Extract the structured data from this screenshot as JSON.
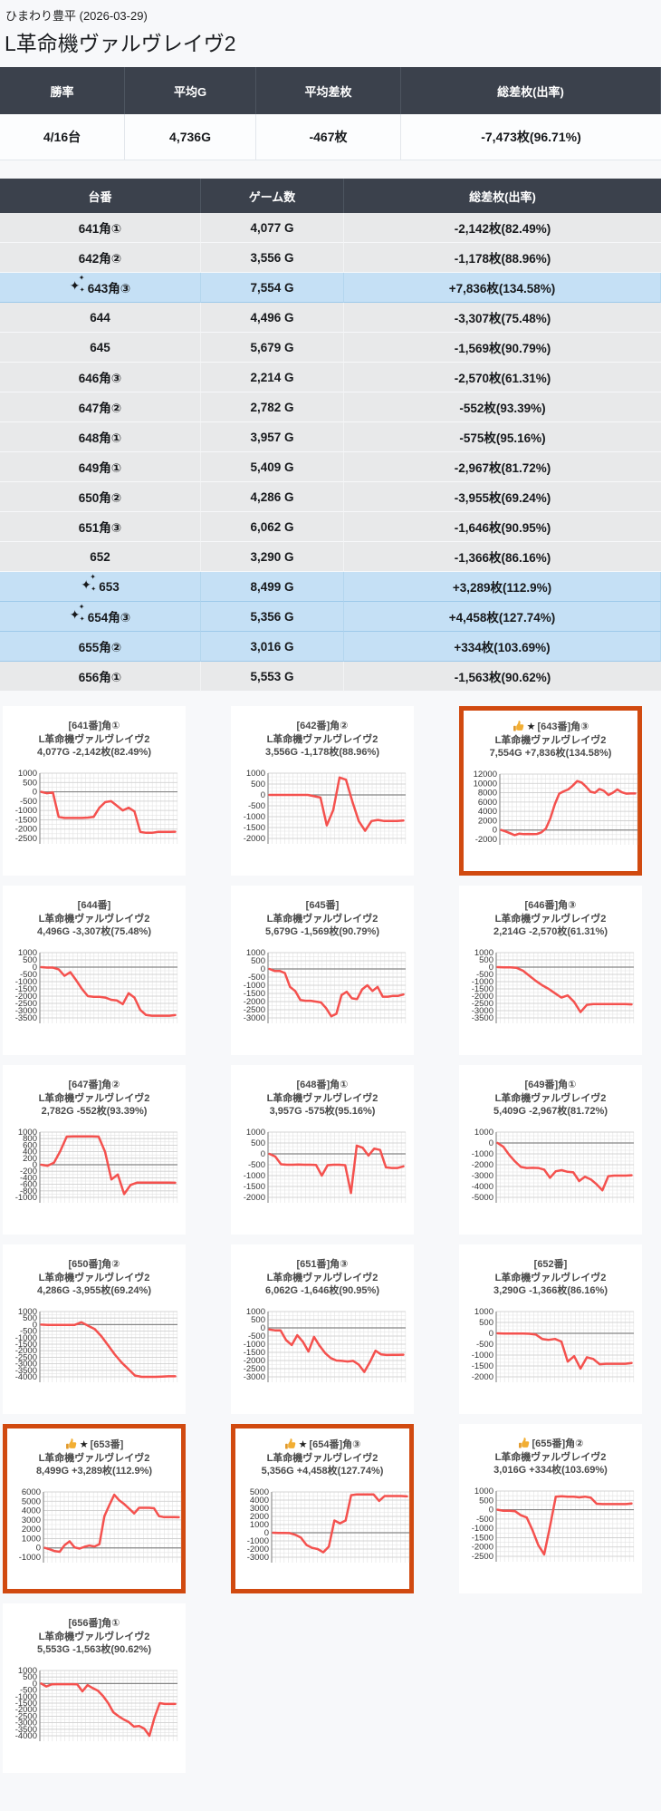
{
  "page": {
    "venue_line": "ひまわり豊平 (2026-03-29)",
    "machine_title": "L革命機ヴァルヴレイヴ2"
  },
  "colors": {
    "header_dark": "#3b414c",
    "row_gray": "#e8e9ea",
    "row_highlight": "#c5e0f5",
    "featured_border": "#d14a10",
    "line_red": "#f4514e",
    "thumb_gold": "#f2ae33"
  },
  "icons": {
    "sparkle": "✦",
    "star": "★",
    "thumb": "thumbs-up"
  },
  "summary": {
    "headers": [
      "勝率",
      "平均G",
      "平均差枚",
      "総差枚(出率)"
    ],
    "values": [
      "4/16台",
      "4,736G",
      "-467枚",
      "-7,473枚(96.71%)"
    ]
  },
  "table": {
    "headers": [
      "台番",
      "ゲーム数",
      "総差枚(出率)"
    ],
    "rows": [
      {
        "dai": "641角①",
        "games": "4,077 G",
        "diff": "-2,142枚(82.49%)",
        "highlight": false,
        "sparkle": false
      },
      {
        "dai": "642角②",
        "games": "3,556 G",
        "diff": "-1,178枚(88.96%)",
        "highlight": false,
        "sparkle": false
      },
      {
        "dai": "643角③",
        "games": "7,554 G",
        "diff": "+7,836枚(134.58%)",
        "highlight": true,
        "sparkle": true
      },
      {
        "dai": "644",
        "games": "4,496 G",
        "diff": "-3,307枚(75.48%)",
        "highlight": false,
        "sparkle": false
      },
      {
        "dai": "645",
        "games": "5,679 G",
        "diff": "-1,569枚(90.79%)",
        "highlight": false,
        "sparkle": false
      },
      {
        "dai": "646角③",
        "games": "2,214 G",
        "diff": "-2,570枚(61.31%)",
        "highlight": false,
        "sparkle": false
      },
      {
        "dai": "647角②",
        "games": "2,782 G",
        "diff": "-552枚(93.39%)",
        "highlight": false,
        "sparkle": false
      },
      {
        "dai": "648角①",
        "games": "3,957 G",
        "diff": "-575枚(95.16%)",
        "highlight": false,
        "sparkle": false
      },
      {
        "dai": "649角①",
        "games": "5,409 G",
        "diff": "-2,967枚(81.72%)",
        "highlight": false,
        "sparkle": false
      },
      {
        "dai": "650角②",
        "games": "4,286 G",
        "diff": "-3,955枚(69.24%)",
        "highlight": false,
        "sparkle": false
      },
      {
        "dai": "651角③",
        "games": "6,062 G",
        "diff": "-1,646枚(90.95%)",
        "highlight": false,
        "sparkle": false
      },
      {
        "dai": "652",
        "games": "3,290 G",
        "diff": "-1,366枚(86.16%)",
        "highlight": false,
        "sparkle": false
      },
      {
        "dai": "653",
        "games": "8,499 G",
        "diff": "+3,289枚(112.9%)",
        "highlight": true,
        "sparkle": true
      },
      {
        "dai": "654角③",
        "games": "5,356 G",
        "diff": "+4,458枚(127.74%)",
        "highlight": true,
        "sparkle": true
      },
      {
        "dai": "655角②",
        "games": "3,016 G",
        "diff": "+334枚(103.69%)",
        "highlight": true,
        "sparkle": false
      },
      {
        "dai": "656角①",
        "games": "5,553 G",
        "diff": "-1,563枚(90.62%)",
        "highlight": false,
        "sparkle": false
      }
    ]
  },
  "chart_data": {
    "type": "line",
    "xlabel": "",
    "ylabel": "差枚",
    "grid": true,
    "charts": [
      {
        "title1": "[641番]角①",
        "title2": "L革命機ヴァルヴレイヴ2",
        "title3": "4,077G -2,142枚(82.49%)",
        "featured": false,
        "badge": null,
        "yticks": [
          1000,
          500,
          0,
          -500,
          -1000,
          -1500,
          -2000,
          -2500
        ],
        "series": [
          0,
          -80,
          -30,
          -1350,
          -1400,
          -1400,
          -1400,
          -1400,
          -1380,
          -1350,
          -850,
          -550,
          -500,
          -750,
          -1000,
          -850,
          -1050,
          -2150,
          -2200,
          -2200,
          -2150,
          -2150,
          -2150,
          -2142
        ]
      },
      {
        "title1": "[642番]角②",
        "title2": "L革命機ヴァルヴレイヴ2",
        "title3": "3,556G -1,178枚(88.96%)",
        "featured": false,
        "badge": null,
        "yticks": [
          1000,
          500,
          0,
          -500,
          -1000,
          -1500,
          -2000
        ],
        "series": [
          0,
          0,
          0,
          0,
          0,
          0,
          0,
          -60,
          -120,
          -1400,
          -700,
          800,
          700,
          -300,
          -1200,
          -1650,
          -1200,
          -1150,
          -1200,
          -1200,
          -1200,
          -1178
        ]
      },
      {
        "title1": "[643番]角③",
        "title2": "L革命機ヴァルヴレイヴ2",
        "title3": "7,554G +7,836枚(134.58%)",
        "featured": true,
        "badge": "thumb_star",
        "yticks": [
          12000,
          10000,
          8000,
          6000,
          4000,
          2000,
          0,
          -2000
        ],
        "series": [
          0,
          -300,
          -700,
          -1100,
          -800,
          -900,
          -850,
          -900,
          -850,
          -500,
          300,
          2500,
          5500,
          7800,
          8300,
          8700,
          9500,
          10500,
          10200,
          9300,
          8200,
          8000,
          8800,
          8400,
          7500,
          8000,
          8700,
          8100,
          7800,
          7836,
          7836
        ]
      },
      {
        "title1": "[644番]",
        "title2": "L革命機ヴァルヴレイヴ2",
        "title3": "4,496G -3,307枚(75.48%)",
        "featured": false,
        "badge": null,
        "yticks": [
          1000,
          500,
          0,
          -500,
          -1000,
          -1500,
          -2000,
          -2500,
          -3000,
          -3500
        ],
        "series": [
          0,
          -30,
          -30,
          -150,
          -600,
          -350,
          -900,
          -1500,
          -2000,
          -2050,
          -2050,
          -2100,
          -2250,
          -2300,
          -2550,
          -1800,
          -2100,
          -2950,
          -3300,
          -3350,
          -3350,
          -3350,
          -3350,
          -3307
        ]
      },
      {
        "title1": "[645番]",
        "title2": "L革命機ヴァルヴレイヴ2",
        "title3": "5,679G -1,569枚(90.79%)",
        "featured": false,
        "badge": null,
        "yticks": [
          1000,
          500,
          0,
          -500,
          -1000,
          -1500,
          -2000,
          -2500,
          -3000
        ],
        "series": [
          0,
          -120,
          -120,
          -250,
          -1100,
          -1350,
          -1900,
          -1950,
          -1950,
          -2000,
          -2050,
          -2400,
          -2900,
          -2750,
          -1600,
          -1400,
          -1800,
          -1850,
          -1250,
          -1000,
          -1350,
          -1100,
          -1700,
          -1700,
          -1650,
          -1650,
          -1569
        ]
      },
      {
        "title1": "[646番]角③",
        "title2": "L革命機ヴァルヴレイヴ2",
        "title3": "2,214G -2,570枚(61.31%)",
        "featured": false,
        "badge": null,
        "yticks": [
          1000,
          500,
          0,
          -500,
          -1000,
          -1500,
          -2000,
          -2500,
          -3000,
          -3500
        ],
        "series": [
          0,
          -20,
          -20,
          -50,
          -250,
          -600,
          -950,
          -1250,
          -1500,
          -1800,
          -2100,
          -1950,
          -2400,
          -3100,
          -2600,
          -2550,
          -2550,
          -2550,
          -2550,
          -2550,
          -2550,
          -2570
        ]
      },
      {
        "title1": "[647番]角②",
        "title2": "L革命機ヴァルヴレイヴ2",
        "title3": "2,782G -552枚(93.39%)",
        "featured": false,
        "badge": null,
        "yticks": [
          1000,
          800,
          600,
          400,
          200,
          0,
          -200,
          -400,
          -600,
          -800,
          -1000
        ],
        "series": [
          0,
          -30,
          60,
          420,
          860,
          870,
          870,
          870,
          870,
          860,
          400,
          -450,
          -300,
          -900,
          -620,
          -550,
          -550,
          -550,
          -550,
          -550,
          -550,
          -552
        ]
      },
      {
        "title1": "[648番]角①",
        "title2": "L革命機ヴァルヴレイヴ2",
        "title3": "3,957G -575枚(95.16%)",
        "featured": false,
        "badge": null,
        "yticks": [
          1000,
          500,
          0,
          -500,
          -1000,
          -1500,
          -2000
        ],
        "series": [
          0,
          -120,
          -480,
          -500,
          -500,
          -490,
          -500,
          -500,
          -510,
          -1000,
          -520,
          -500,
          -500,
          -520,
          -1800,
          380,
          280,
          -80,
          240,
          180,
          -620,
          -650,
          -650,
          -575
        ]
      },
      {
        "title1": "[649番]角①",
        "title2": "L革命機ヴァルヴレイヴ2",
        "title3": "5,409G -2,967枚(81.72%)",
        "featured": false,
        "badge": null,
        "yticks": [
          1000,
          0,
          -1000,
          -2000,
          -3000,
          -4000,
          -5000
        ],
        "series": [
          0,
          -350,
          -1100,
          -1700,
          -2200,
          -2300,
          -2280,
          -2300,
          -2450,
          -3200,
          -2600,
          -2500,
          -2650,
          -2700,
          -3500,
          -3100,
          -3350,
          -3800,
          -4350,
          -3050,
          -3000,
          -3000,
          -3000,
          -2967
        ]
      },
      {
        "title1": "[650番]角②",
        "title2": "L革命機ヴァルヴレイヴ2",
        "title3": "4,286G -3,955枚(69.24%)",
        "featured": false,
        "badge": null,
        "yticks": [
          1000,
          500,
          0,
          -500,
          -1000,
          -1500,
          -2000,
          -2500,
          -3000,
          -3500,
          -4000
        ],
        "series": [
          0,
          -20,
          -20,
          -20,
          -20,
          -20,
          180,
          -80,
          -350,
          -900,
          -1600,
          -2300,
          -2900,
          -3400,
          -3900,
          -4000,
          -4000,
          -4000,
          -3980,
          -3960,
          -3955
        ]
      },
      {
        "title1": "[651番]角③",
        "title2": "L革命機ヴァルヴレイヴ2",
        "title3": "6,062G -1,646枚(90.95%)",
        "featured": false,
        "badge": null,
        "yticks": [
          1000,
          500,
          0,
          -500,
          -1000,
          -1500,
          -2000,
          -2500,
          -3000
        ],
        "series": [
          -100,
          -150,
          -150,
          -750,
          -1050,
          -450,
          -850,
          -1450,
          -550,
          -1100,
          -1550,
          -1850,
          -2000,
          -2020,
          -2060,
          -2020,
          -2250,
          -2700,
          -2100,
          -1400,
          -1620,
          -1660,
          -1650,
          -1650,
          -1646
        ]
      },
      {
        "title1": "[652番]",
        "title2": "L革命機ヴァルヴレイヴ2",
        "title3": "3,290G -1,366枚(86.16%)",
        "featured": false,
        "badge": null,
        "yticks": [
          1000,
          500,
          0,
          -500,
          -1000,
          -1500,
          -2000
        ],
        "series": [
          0,
          -10,
          -10,
          -10,
          -10,
          -20,
          -60,
          -260,
          -300,
          -260,
          -380,
          -1300,
          -1050,
          -1620,
          -1100,
          -1180,
          -1420,
          -1400,
          -1400,
          -1400,
          -1400,
          -1366
        ]
      },
      {
        "title1": "[653番]",
        "title2": "L革命機ヴァルヴレイヴ2",
        "title3": "8,499G +3,289枚(112.9%)",
        "featured": true,
        "badge": "thumb_star",
        "yticks": [
          6000,
          5000,
          4000,
          3000,
          2000,
          1000,
          0,
          -1000
        ],
        "series": [
          0,
          -150,
          -350,
          -420,
          300,
          700,
          50,
          -80,
          120,
          250,
          150,
          400,
          3400,
          4600,
          5700,
          5100,
          4700,
          4200,
          3700,
          4300,
          4300,
          4300,
          4250,
          3400,
          3300,
          3300,
          3300,
          3289
        ]
      },
      {
        "title1": "[654番]角③",
        "title2": "L革命機ヴァルヴレイヴ2",
        "title3": "5,356G +4,458枚(127.74%)",
        "featured": true,
        "badge": "thumb_star",
        "yticks": [
          5000,
          4000,
          3000,
          2000,
          1000,
          0,
          -1000,
          -2000,
          -3000
        ],
        "series": [
          0,
          -20,
          -20,
          -50,
          -250,
          -600,
          -1500,
          -1850,
          -2000,
          -2400,
          -1700,
          1500,
          1150,
          1500,
          4600,
          4700,
          4700,
          4700,
          4700,
          3900,
          4500,
          4500,
          4500,
          4500,
          4458
        ]
      },
      {
        "title1": "[655番]角②",
        "title2": "L革命機ヴァルヴレイヴ2",
        "title3": "3,016G +334枚(103.69%)",
        "featured": false,
        "badge": "thumb",
        "yticks": [
          1000,
          500,
          0,
          -500,
          -1000,
          -1500,
          -2000,
          -2500
        ],
        "series": [
          0,
          -60,
          -60,
          -80,
          -300,
          -420,
          -1100,
          -1900,
          -2400,
          -900,
          700,
          720,
          700,
          700,
          660,
          700,
          640,
          320,
          300,
          300,
          300,
          300,
          300,
          334
        ]
      },
      {
        "title1": "[656番]角①",
        "title2": "L革命機ヴァルヴレイヴ2",
        "title3": "5,553G -1,563枚(90.62%)",
        "featured": false,
        "badge": null,
        "yticks": [
          1000,
          500,
          0,
          -500,
          -1000,
          -1500,
          -2000,
          -2500,
          -3000,
          -3500,
          -4000
        ],
        "series": [
          0,
          -220,
          -60,
          -50,
          -50,
          -50,
          -50,
          -60,
          -600,
          -120,
          -350,
          -550,
          -950,
          -1500,
          -2200,
          -2500,
          -2750,
          -2950,
          -3300,
          -3250,
          -3450,
          -4000,
          -2600,
          -1500,
          -1560,
          -1560,
          -1563
        ]
      }
    ]
  }
}
